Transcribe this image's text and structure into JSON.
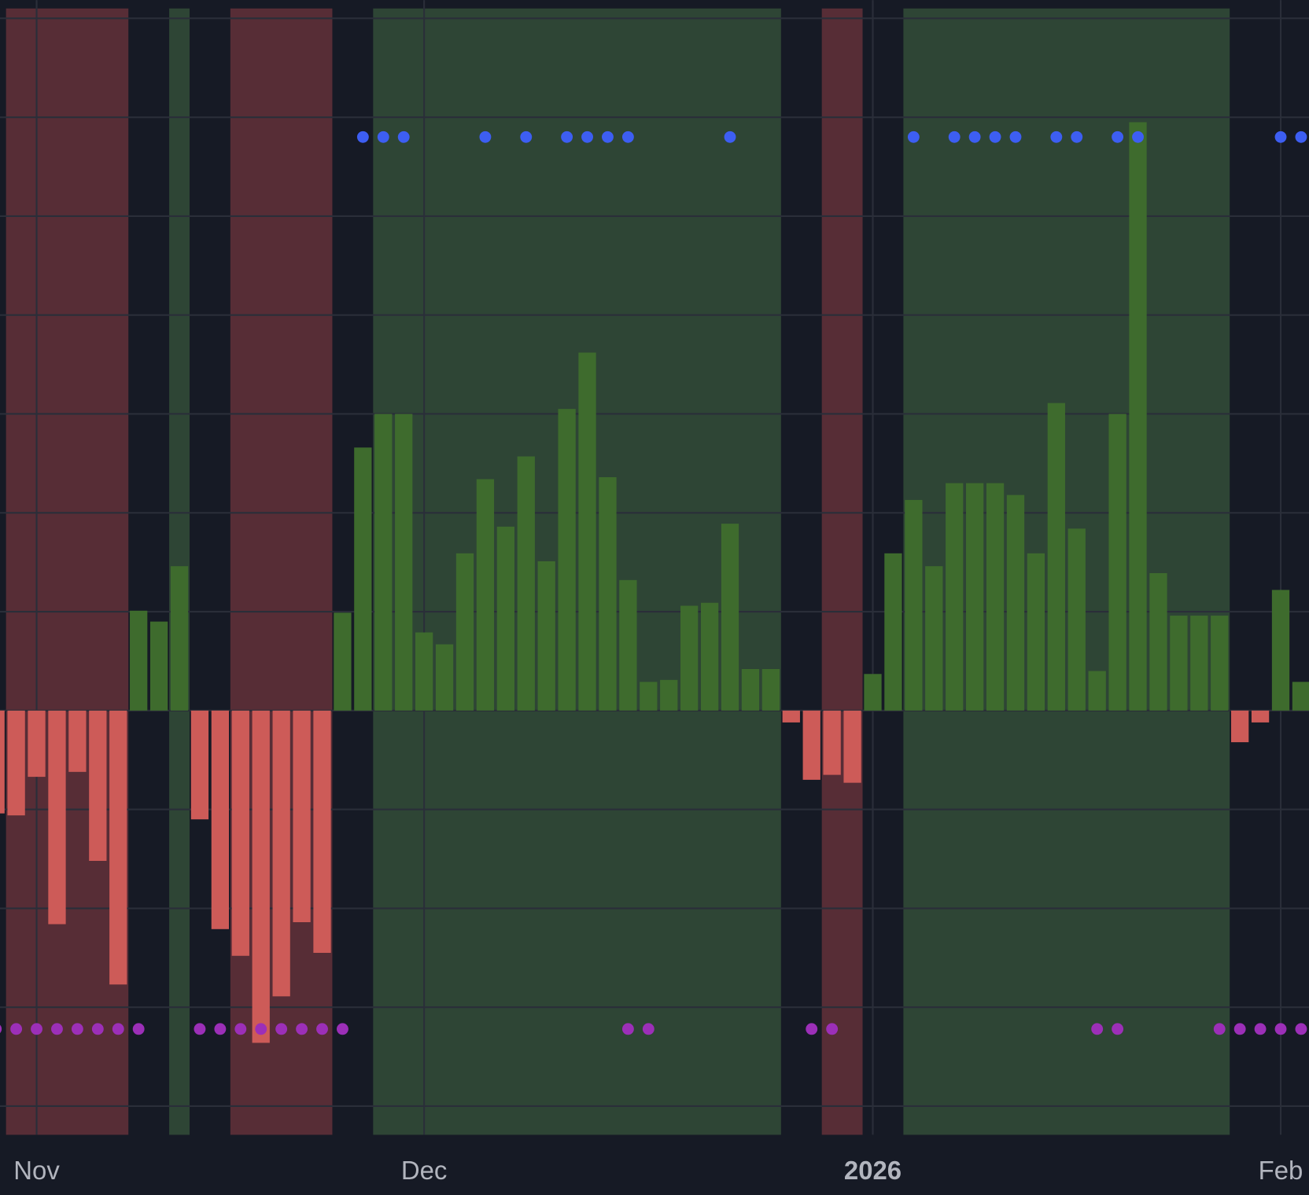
{
  "chart_data": {
    "type": "bar",
    "categories": [
      null,
      null,
      "Nov",
      null,
      null,
      null,
      null,
      null,
      null,
      null,
      null,
      null,
      null,
      null,
      null,
      null,
      null,
      null,
      null,
      null,
      null,
      "Dec",
      null,
      null,
      null,
      null,
      null,
      null,
      null,
      null,
      null,
      null,
      null,
      null,
      null,
      null,
      null,
      null,
      null,
      null,
      null,
      null,
      null,
      "2026",
      null,
      null,
      null,
      null,
      null,
      null,
      null,
      null,
      null,
      null,
      null,
      null,
      null,
      null,
      null,
      null,
      null,
      null,
      null,
      "Feb",
      null
    ],
    "bold_categories": [
      "2026"
    ],
    "values": [
      -1.04,
      -1.06,
      -0.67,
      -2.16,
      -0.62,
      -1.52,
      -2.77,
      1.01,
      0.9,
      1.46,
      -1.1,
      -2.21,
      -2.48,
      -3.36,
      -2.89,
      -2.14,
      -2.45,
      0.99,
      2.66,
      3.0,
      3.0,
      0.79,
      0.67,
      1.59,
      2.34,
      1.86,
      2.57,
      1.51,
      3.05,
      3.62,
      2.36,
      1.32,
      0.29,
      0.31,
      1.06,
      1.09,
      1.89,
      0.42,
      0.42,
      -0.12,
      -0.7,
      -0.65,
      -0.73,
      0.37,
      1.59,
      2.13,
      1.46,
      2.3,
      2.3,
      2.3,
      2.18,
      1.59,
      3.11,
      1.84,
      0.4,
      3.0,
      5.95,
      1.39,
      0.96,
      0.96,
      0.96,
      -0.32,
      -0.12,
      1.22,
      0.29
    ],
    "up_color": "#3e6b2d",
    "down_color": "#cd5b58",
    "zones": [
      {
        "start": 1,
        "end": 6,
        "color": "#572d36"
      },
      {
        "start": 9,
        "end": 9,
        "color": "#2e4535"
      },
      {
        "start": 12,
        "end": 16,
        "color": "#572d36"
      },
      {
        "start": 19,
        "end": 38,
        "color": "#2e4535"
      },
      {
        "start": 41,
        "end": 42,
        "color": "#572d36"
      },
      {
        "start": 45,
        "end": 60,
        "color": "#2e4535"
      }
    ],
    "dots": [
      {
        "color": "#3d5ef2",
        "y": 5.8,
        "indices": [
          18,
          19,
          20,
          24,
          26,
          28,
          29,
          30,
          31,
          36,
          45,
          47,
          48,
          49,
          50,
          52,
          53,
          55,
          56,
          63,
          64
        ]
      },
      {
        "color": "#9c2fb8",
        "y": -3.22,
        "indices": [
          0,
          1,
          2,
          3,
          4,
          5,
          6,
          7,
          10,
          11,
          12,
          13,
          14,
          15,
          16,
          17,
          31,
          32,
          40,
          41,
          54,
          55,
          60,
          61,
          62,
          63,
          64
        ]
      }
    ],
    "ylim": [
      -4.29,
      7.1
    ],
    "yticks": [
      -4,
      -3,
      -2,
      -1,
      0,
      1,
      2,
      3,
      4,
      5,
      6,
      7
    ],
    "grid": true,
    "grid_color": "#2a2e39"
  }
}
